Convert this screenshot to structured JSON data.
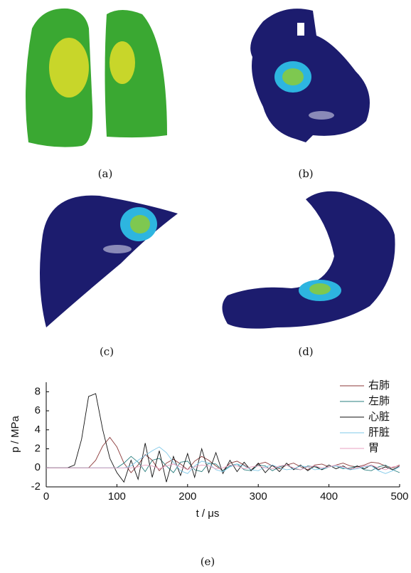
{
  "panels": [
    {
      "label": "(a)"
    },
    {
      "label": "(b)"
    },
    {
      "label": "(c)"
    },
    {
      "label": "(d)"
    }
  ],
  "chart_caption": "(e)",
  "chart_data": {
    "type": "line",
    "xlabel": "t / μs",
    "ylabel": "p / MPa",
    "x": [
      0,
      10,
      20,
      30,
      40,
      50,
      60,
      70,
      80,
      90,
      100,
      110,
      120,
      130,
      140,
      150,
      160,
      170,
      180,
      190,
      200,
      210,
      220,
      230,
      240,
      250,
      260,
      270,
      280,
      290,
      300,
      310,
      320,
      330,
      340,
      350,
      360,
      370,
      380,
      390,
      400,
      410,
      420,
      430,
      440,
      450,
      460,
      470,
      480,
      490,
      500
    ],
    "xlim": [
      0,
      500
    ],
    "xticks": [
      0,
      100,
      200,
      300,
      400,
      500
    ],
    "ylim": [
      -2,
      9
    ],
    "yticks": [
      -2,
      0,
      2,
      4,
      6,
      8
    ],
    "legend": "upper right",
    "series": [
      {
        "name": "右肺",
        "color": "#8b3a3a",
        "values": [
          0,
          0,
          0,
          0,
          0,
          0,
          0,
          0.8,
          2.3,
          3.2,
          2.2,
          0.5,
          -0.5,
          0.3,
          1.4,
          0.8,
          -0.3,
          0.5,
          0.9,
          0.4,
          -0.2,
          0.7,
          1.2,
          0.8,
          0.2,
          -0.3,
          0.5,
          0.7,
          0.3,
          -0.2,
          0.4,
          0.6,
          0.2,
          -0.1,
          0.3,
          0.5,
          0.1,
          -0.2,
          0.3,
          0.4,
          0.1,
          0.3,
          0.5,
          0.2,
          0.1,
          0.3,
          0.6,
          0.5,
          0.2,
          0,
          0.3
        ]
      },
      {
        "name": "左肺",
        "color": "#2a7f7f",
        "values": [
          0,
          0,
          0,
          0,
          0,
          0,
          0,
          0,
          0,
          0,
          0,
          0.5,
          1.2,
          0.6,
          -0.4,
          0.8,
          1.0,
          0.2,
          -0.5,
          0.6,
          0.7,
          -0.2,
          -0.4,
          0.5,
          0.4,
          -0.3,
          0.2,
          0.4,
          -0.2,
          -0.3,
          0.3,
          0.2,
          -0.3,
          0.1,
          0.3,
          -0.1,
          -0.2,
          0.2,
          0.1,
          -0.2,
          0.1,
          0.2,
          -0.1,
          0,
          0.2,
          -0.2,
          -0.3,
          0.1,
          0.3,
          -0.2,
          -0.5
        ]
      },
      {
        "name": "心脏",
        "color": "#111111",
        "values": [
          0,
          0,
          0,
          0,
          0.3,
          3,
          7.5,
          7.8,
          4,
          1,
          -0.5,
          -1.5,
          0.8,
          -1.2,
          2.6,
          -1,
          1.8,
          -1.5,
          1.2,
          -0.8,
          1.5,
          -1,
          2.0,
          -0.5,
          1.6,
          -0.6,
          0.8,
          -0.4,
          0.6,
          -0.3,
          0.5,
          -0.5,
          0.3,
          -0.4,
          0.5,
          -0.2,
          0.3,
          -0.3,
          0.2,
          -0.2,
          0.3,
          -0.1,
          0.2,
          -0.2,
          0.2,
          -0.1,
          0.3,
          -0.2,
          0.1,
          -0.2,
          0.2
        ]
      },
      {
        "name": "肝脏",
        "color": "#7fc8e8",
        "values": [
          0,
          0,
          0,
          0,
          0,
          0,
          0,
          0,
          0,
          0,
          0,
          0,
          0.2,
          0.8,
          1.3,
          1.8,
          2.2,
          1.6,
          0.6,
          -0.3,
          -0.6,
          0.2,
          0.7,
          0.5,
          -0.2,
          -0.4,
          0.1,
          0.4,
          0.2,
          -0.2,
          -0.3,
          0.1,
          0.3,
          0,
          -0.2,
          -0.1,
          0.2,
          0.1,
          -0.2,
          -0.1,
          0.1,
          0.2,
          0,
          -0.2,
          -0.1,
          0.1,
          0.2,
          -0.3,
          -0.6,
          -0.3,
          0.1
        ]
      },
      {
        "name": "胃",
        "color": "#e8a0c0",
        "values": [
          0,
          0,
          0,
          0,
          0,
          0,
          0,
          0,
          0,
          0,
          0,
          0,
          0,
          0.1,
          0.3,
          0.2,
          -0.1,
          0.2,
          0.4,
          0.1,
          -0.2,
          0.1,
          0.3,
          0.2,
          -0.1,
          0,
          0.3,
          0.2,
          -0.1,
          0.1,
          0.2,
          0,
          -0.1,
          0.2,
          0.3,
          0,
          -0.2,
          0.1,
          0.2,
          0,
          0.1,
          0.3,
          0.1,
          -0.1,
          0,
          0.2,
          0.3,
          0,
          -0.2,
          0.1,
          0.2
        ]
      }
    ]
  }
}
